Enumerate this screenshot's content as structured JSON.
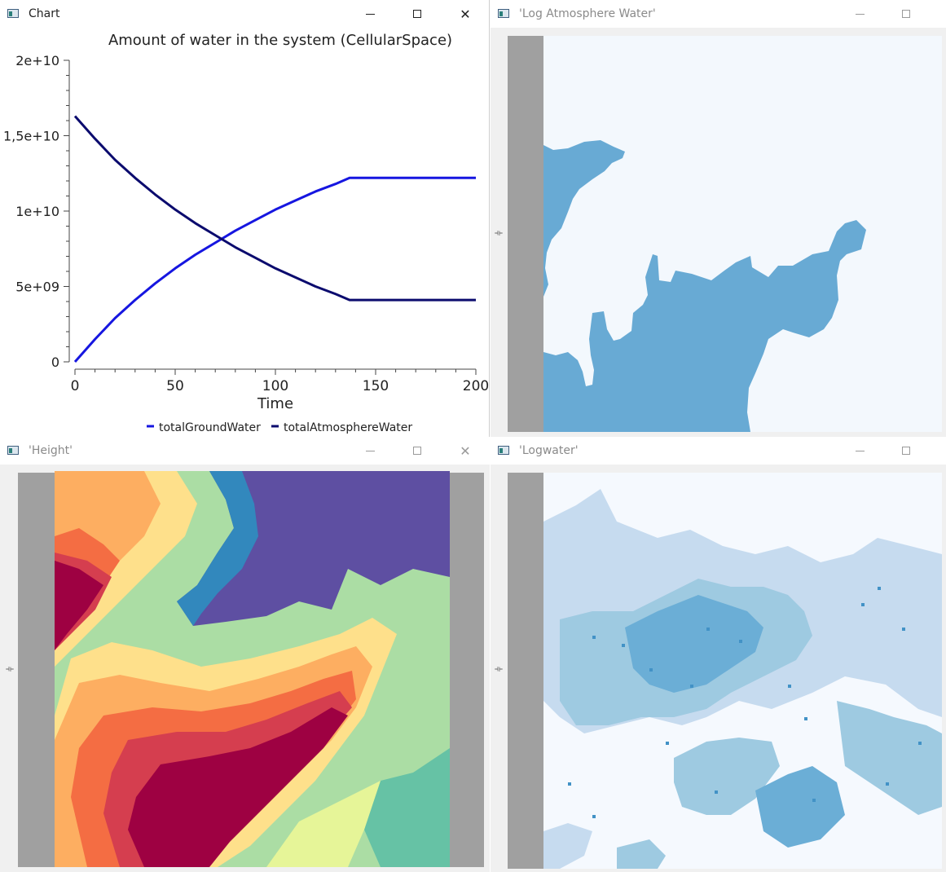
{
  "windows": {
    "chart": {
      "title": "Chart",
      "controls": {
        "minimize": "–",
        "maximize": "□",
        "close": "✕"
      }
    },
    "log_atmosphere": {
      "title": "'Log Atmosphere Water'"
    },
    "height": {
      "title": "'Height'"
    },
    "logwater": {
      "title": "'Logwater'"
    }
  },
  "resize_handle_glyph": "⟛",
  "chart_data": {
    "type": "line",
    "title": "Amount of water in the system (CellularSpace)",
    "xlabel": "Time",
    "ylabel": "",
    "xlim": [
      0,
      200
    ],
    "ylim": [
      0,
      20000000000.0
    ],
    "xticks": [
      "0",
      "50",
      "100",
      "150",
      "200"
    ],
    "yticks": [
      "0",
      "5e+09",
      "1e+10",
      "1,5e+10",
      "2e+10"
    ],
    "x": [
      0,
      10,
      20,
      30,
      40,
      50,
      60,
      70,
      80,
      90,
      100,
      110,
      120,
      130,
      137,
      150,
      175,
      200
    ],
    "series": [
      {
        "name": "totalGroundWater",
        "color": "#1616e0",
        "values": [
          0,
          1500000000.0,
          2900000000.0,
          4100000000.0,
          5200000000.0,
          6200000000.0,
          7100000000.0,
          7900000000.0,
          8700000000.0,
          9400000000.0,
          10100000000.0,
          10700000000.0,
          11300000000.0,
          11800000000.0,
          12200000000.0,
          12200000000.0,
          12200000000.0,
          12200000000.0
        ]
      },
      {
        "name": "totalAtmosphereWater",
        "color": "#0b0b6e",
        "values": [
          16300000000.0,
          14800000000.0,
          13400000000.0,
          12200000000.0,
          11100000000.0,
          10100000000.0,
          9200000000.0,
          8400000000.0,
          7600000000.0,
          6900000000.0,
          6200000000.0,
          5600000000.0,
          5000000000.0,
          4500000000.0,
          4100000000.0,
          4100000000.0,
          4100000000.0,
          4100000000.0
        ]
      }
    ],
    "legend": "bottom",
    "grid": false
  },
  "maps": {
    "log_atmosphere": {
      "background": "#f3f8fd",
      "water": "#68aad4"
    },
    "height": {
      "palette": [
        "#9e0142",
        "#d53e4f",
        "#f46d43",
        "#fdae61",
        "#fee08b",
        "#e6f598",
        "#abdda4",
        "#66c2a5",
        "#3288bd",
        "#5e4fa2"
      ]
    },
    "logwater": {
      "background": "#f5f9fe",
      "light": "#c6dbef",
      "mid": "#9ecae1",
      "dark": "#6baed6",
      "deep": "#4292c6"
    }
  }
}
